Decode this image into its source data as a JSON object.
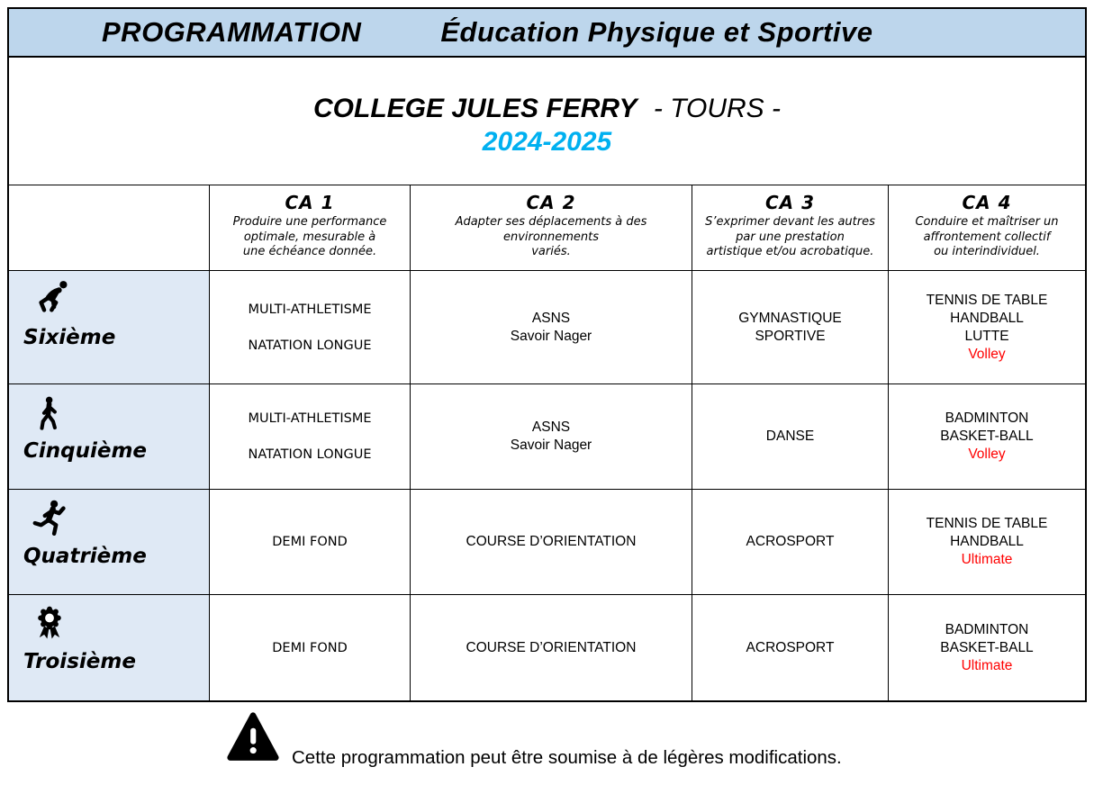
{
  "banner": {
    "left": "PROGRAMMATION",
    "right": "Éducation Physique et Sportive"
  },
  "title": {
    "school": "COLLEGE JULES FERRY",
    "city": "- TOURS -",
    "year": "2024-2025"
  },
  "columns": [
    {
      "title": "CA 1",
      "desc": "Produire une performance\noptimale, mesurable à\nune échéance donnée."
    },
    {
      "title": "CA 2",
      "desc": "Adapter ses déplacements à des\nenvironnements\nvariés."
    },
    {
      "title": "CA 3",
      "desc": "S’exprimer devant les autres\npar une prestation\nartistique et/ou acrobatique."
    },
    {
      "title": "CA 4",
      "desc": "Conduire et maîtriser un\naffrontement collectif\nou interindividuel."
    }
  ],
  "table": {
    "rows": [
      {
        "id": "sixieme",
        "label": "Sixième",
        "icon": "sprint-start-icon",
        "cells": [
          [
            {
              "text": "MULTI-ATHLETISME"
            },
            {
              "text": ""
            },
            {
              "text": "NATATION LONGUE"
            }
          ],
          [
            {
              "text": "ASNS"
            },
            {
              "text": "Savoir Nager"
            }
          ],
          [
            {
              "text": "GYMNASTIQUE"
            },
            {
              "text": "SPORTIVE"
            }
          ],
          [
            {
              "text": "TENNIS DE TABLE"
            },
            {
              "text": "HANDBALL"
            },
            {
              "text": "LUTTE"
            },
            {
              "text": "Volley",
              "highlight": true
            }
          ]
        ]
      },
      {
        "id": "cinquieme",
        "label": "Cinquième",
        "icon": "walking-icon",
        "cells": [
          [
            {
              "text": "MULTI-ATHLETISME"
            },
            {
              "text": ""
            },
            {
              "text": "NATATION LONGUE"
            }
          ],
          [
            {
              "text": "ASNS"
            },
            {
              "text": "Savoir Nager"
            }
          ],
          [
            {
              "text": "DANSE"
            }
          ],
          [
            {
              "text": "BADMINTON"
            },
            {
              "text": "BASKET-BALL"
            },
            {
              "text": "Volley",
              "highlight": true
            }
          ]
        ]
      },
      {
        "id": "quatrieme",
        "label": "Quatrième",
        "icon": "running-icon",
        "cells": [
          [
            {
              "text": "DEMI FOND"
            }
          ],
          [
            {
              "text": "COURSE D’ORIENTATION"
            }
          ],
          [
            {
              "text": "ACROSPORT"
            }
          ],
          [
            {
              "text": "TENNIS DE TABLE"
            },
            {
              "text": "HANDBALL"
            },
            {
              "text": "Ultimate",
              "highlight": true
            }
          ]
        ]
      },
      {
        "id": "troisieme",
        "label": "Troisième",
        "icon": "award-ribbon-icon",
        "cells": [
          [
            {
              "text": "DEMI FOND"
            }
          ],
          [
            {
              "text": "COURSE D’ORIENTATION"
            }
          ],
          [
            {
              "text": "ACROSPORT"
            }
          ],
          [
            {
              "text": "BADMINTON"
            },
            {
              "text": "BASKET-BALL"
            },
            {
              "text": "Ultimate",
              "highlight": true
            }
          ]
        ]
      }
    ]
  },
  "footer": {
    "note": "Cette programmation peut être soumise à de légères modifications."
  },
  "colors": {
    "banner_bg": "#bdd6ec",
    "label_cell_bg": "#dfe9f5",
    "year_accent": "#00b0f0",
    "highlight_red": "#ff0000",
    "border": "#000000"
  }
}
